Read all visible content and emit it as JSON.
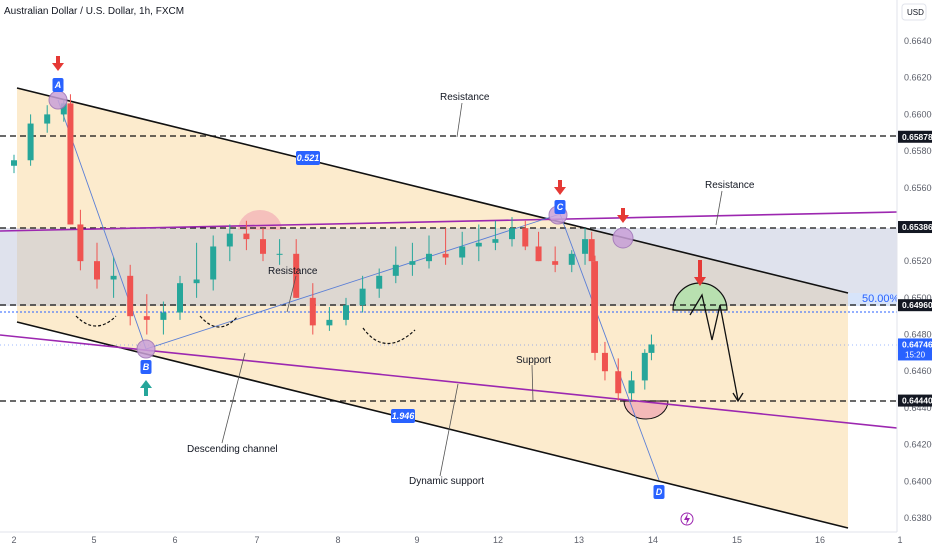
{
  "header": {
    "symbol_title": "Australian Dollar / U.S. Dollar, 1h, FXCM",
    "currency": "USD"
  },
  "chart_data": {
    "type": "candlestick",
    "title": "Australian Dollar / U.S. Dollar, 1h, FXCM",
    "x_ticks": [
      "2",
      "5",
      "6",
      "7",
      "8",
      "9",
      "12",
      "13",
      "14",
      "15",
      "16",
      "1"
    ],
    "y_ticks": [
      "0.66400",
      "0.66200",
      "0.66000",
      "0.65800",
      "0.65600",
      "0.65400",
      "0.65200",
      "0.65000",
      "0.64800",
      "0.64600",
      "0.64400",
      "0.64200",
      "0.64000",
      "0.63800"
    ],
    "ylim": [
      0.6376,
      0.6651
    ],
    "price_labels": [
      {
        "text": "0.65878",
        "value": 0.65878,
        "color": "#131722"
      },
      {
        "text": "0.65386",
        "value": 0.65386,
        "color": "#131722"
      },
      {
        "text": "0.64960",
        "value": 0.6496,
        "color": "#131722"
      },
      {
        "text": "0.64746",
        "value": 0.64746,
        "sub": "15:20",
        "color": "#2962ff"
      },
      {
        "text": "0.64440",
        "value": 0.6444,
        "color": "#131722"
      }
    ],
    "fib_label": "50.00%",
    "annotations": [
      {
        "text": "Resistance",
        "x": 6.8,
        "y": 0.661
      },
      {
        "text": "Resistance",
        "x": 19.5,
        "y": 0.6569
      },
      {
        "text": "Resistance",
        "x": 8.3,
        "y": 0.652
      },
      {
        "text": "Support",
        "x": 15.3,
        "y": 0.6466
      },
      {
        "text": "Descending channel",
        "x": 6.1,
        "y": 0.6418
      },
      {
        "text": "Dynamic support",
        "x": 12.0,
        "y": 0.6404
      }
    ],
    "badges": [
      {
        "text": "A",
        "x": 1.65,
        "y": 0.6625
      },
      {
        "text": "B",
        "x": 4.1,
        "y": 0.6463
      },
      {
        "text": "C",
        "x": 15.55,
        "y": 0.6545
      },
      {
        "text": "D",
        "x": 18.3,
        "y": 0.6395
      },
      {
        "text": "0.521",
        "x": 8.6,
        "y": 0.6574
      },
      {
        "text": "1.946",
        "x": 11.2,
        "y": 0.643
      }
    ],
    "series": [
      {
        "name": "AUDUSD",
        "x": [
          0,
          0.5,
          1,
          1.5,
          1.7,
          2,
          2.5,
          3,
          3.5,
          4,
          4.5,
          5,
          5.5,
          6,
          6.5,
          7,
          7.5,
          8,
          8.5,
          9,
          9.5,
          10,
          10.5,
          11,
          11.5,
          12,
          12.5,
          13,
          13.5,
          14,
          14.5,
          15,
          15.4,
          15.8,
          16.3,
          16.8,
          17.2,
          17.4,
          17.5,
          17.8,
          18.2,
          18.6,
          19.0,
          19.2
        ],
        "open": [
          0.6572,
          0.6575,
          0.6595,
          0.66,
          0.6606,
          0.654,
          0.652,
          0.651,
          0.6512,
          0.649,
          0.6488,
          0.6492,
          0.6508,
          0.651,
          0.6528,
          0.6535,
          0.6532,
          0.6524,
          0.6524,
          0.65,
          0.6485,
          0.6488,
          0.6496,
          0.6505,
          0.6512,
          0.6518,
          0.652,
          0.6524,
          0.6522,
          0.6528,
          0.653,
          0.6532,
          0.6538,
          0.6528,
          0.652,
          0.6518,
          0.6524,
          0.6532,
          0.652,
          0.647,
          0.646,
          0.6448,
          0.6455,
          0.647
        ],
        "high": [
          0.6578,
          0.66,
          0.6605,
          0.6608,
          0.6611,
          0.6548,
          0.653,
          0.6522,
          0.6518,
          0.6502,
          0.6498,
          0.6512,
          0.653,
          0.6534,
          0.654,
          0.6542,
          0.6538,
          0.6532,
          0.6532,
          0.6508,
          0.6495,
          0.65,
          0.6512,
          0.6516,
          0.6528,
          0.653,
          0.6534,
          0.6538,
          0.6536,
          0.654,
          0.6542,
          0.6544,
          0.6542,
          0.6536,
          0.6528,
          0.6526,
          0.6538,
          0.6536,
          0.6523,
          0.6476,
          0.6467,
          0.646,
          0.6472,
          0.648
        ],
        "low": [
          0.6568,
          0.6572,
          0.659,
          0.6596,
          0.654,
          0.6515,
          0.6505,
          0.65,
          0.6485,
          0.648,
          0.648,
          0.6488,
          0.65,
          0.6504,
          0.652,
          0.6526,
          0.652,
          0.6518,
          0.65,
          0.648,
          0.6482,
          0.6485,
          0.6492,
          0.65,
          0.6508,
          0.6512,
          0.6516,
          0.6518,
          0.6518,
          0.652,
          0.6526,
          0.6528,
          0.6526,
          0.652,
          0.6514,
          0.6514,
          0.6518,
          0.647,
          0.6466,
          0.6455,
          0.6444,
          0.6444,
          0.645,
          0.6466
        ],
        "close": [
          0.6575,
          0.6595,
          0.66,
          0.6606,
          0.654,
          0.652,
          0.651,
          0.6512,
          0.649,
          0.6488,
          0.6492,
          0.6508,
          0.651,
          0.6528,
          0.6535,
          0.6532,
          0.6524,
          0.6524,
          0.65,
          0.6485,
          0.6488,
          0.6496,
          0.6505,
          0.6512,
          0.6518,
          0.652,
          0.6524,
          0.6522,
          0.6528,
          0.653,
          0.6532,
          0.6538,
          0.6528,
          0.652,
          0.6518,
          0.6524,
          0.6532,
          0.652,
          0.647,
          0.646,
          0.6448,
          0.6455,
          0.647,
          0.64746
        ]
      }
    ]
  }
}
